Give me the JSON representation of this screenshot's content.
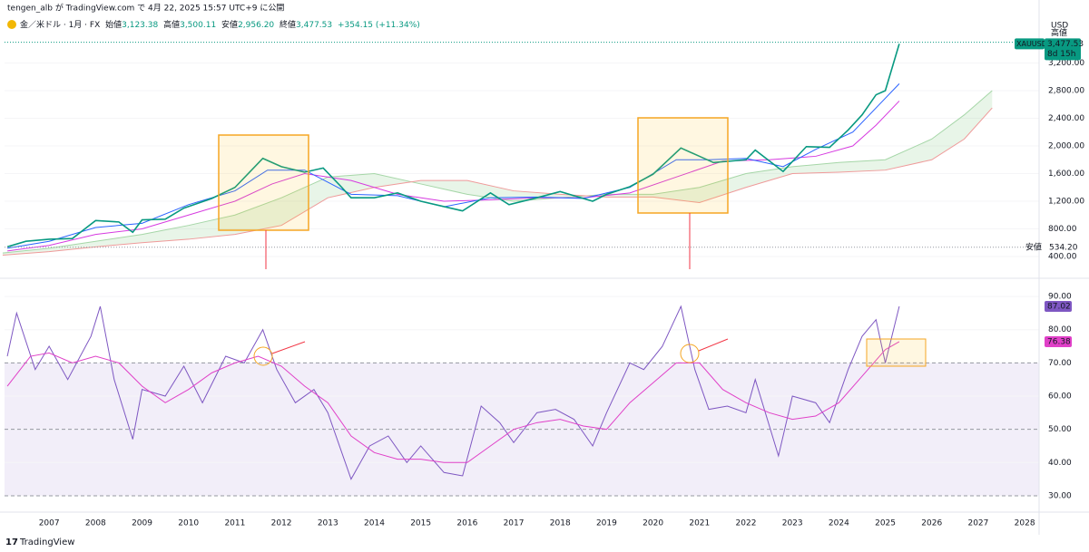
{
  "header": {
    "publisher": "tengen_alb が TradingView.com で 4月 22, 2025 15:57 UTC+9 に公開",
    "symbol": "金／米ドル · 1月 · FX",
    "ohlc": [
      [
        "始値",
        "3,123.38"
      ],
      [
        "高値",
        "3,500.11"
      ],
      [
        "安値",
        "2,956.20"
      ],
      [
        "終値",
        "3,477.53"
      ]
    ],
    "change": "+354.15 (+11.34%)",
    "currency": "USD",
    "brand": "TradingView"
  },
  "chart_data": [
    {
      "type": "line",
      "pane": "price",
      "xlim": [
        2006.04,
        2028.31
      ],
      "ylim": [
        177,
        3587
      ],
      "yticks": [
        {
          "value": 400,
          "label": "400.00"
        },
        {
          "value": 800,
          "label": "800.00"
        },
        {
          "value": 1200,
          "label": "1,200.00"
        },
        {
          "value": 1600,
          "label": "1,600.00"
        },
        {
          "value": 2000,
          "label": "2,000.00"
        },
        {
          "value": 2400,
          "label": "2,400.00"
        },
        {
          "value": 2800,
          "label": "2,800.00"
        },
        {
          "value": 3200,
          "label": "3,200.00"
        }
      ],
      "high_line": {
        "label": "高値",
        "value": 3500.11
      },
      "low_line": {
        "label": "安値",
        "value": 534.2,
        "value_label": "534.20"
      },
      "last": {
        "symbol": "XAUUSD",
        "value": 3477.53,
        "value_label": "3,477.53",
        "countdown": "8d 15h",
        "color": "#089981"
      },
      "series": [
        {
          "role": "cloud-a",
          "color": "#a5d6a7",
          "x": [
            2006,
            2007,
            2008,
            2009,
            2010,
            2011,
            2012,
            2013,
            2014,
            2015,
            2016,
            2017,
            2018,
            2019,
            2020,
            2021,
            2022,
            2023,
            2024,
            2025,
            2026,
            2026.7,
            2027.3
          ],
          "values": [
            450,
            520,
            620,
            720,
            850,
            1000,
            1250,
            1550,
            1600,
            1450,
            1300,
            1200,
            1250,
            1300,
            1300,
            1400,
            1600,
            1700,
            1760,
            1800,
            2100,
            2450,
            2800
          ]
        },
        {
          "role": "cloud-b",
          "color": "#ef9a9a",
          "x": [
            2006,
            2007,
            2008,
            2009,
            2010,
            2011,
            2012,
            2013,
            2014,
            2015,
            2016,
            2017,
            2018,
            2019,
            2020,
            2021,
            2022,
            2023,
            2024,
            2025,
            2026,
            2026.7,
            2027.3
          ],
          "values": [
            420,
            470,
            540,
            600,
            650,
            720,
            850,
            1250,
            1400,
            1500,
            1500,
            1350,
            1300,
            1260,
            1260,
            1180,
            1400,
            1600,
            1620,
            1650,
            1800,
            2100,
            2550
          ]
        },
        {
          "role": "base",
          "color": "#d63ae0",
          "x": [
            2006.1,
            2007,
            2008,
            2009,
            2010,
            2011,
            2011.8,
            2012.5,
            2013.5,
            2014.5,
            2015.5,
            2016.5,
            2017.5,
            2018.5,
            2019.5,
            2020.5,
            2021.5,
            2022.5,
            2023.5,
            2024.3,
            2024.8,
            2025.3
          ],
          "values": [
            480,
            560,
            720,
            800,
            1000,
            1200,
            1450,
            1600,
            1500,
            1300,
            1200,
            1220,
            1250,
            1250,
            1320,
            1550,
            1780,
            1800,
            1850,
            2000,
            2300,
            2650
          ]
        },
        {
          "role": "conversion",
          "color": "#2962ff",
          "x": [
            2006.1,
            2007,
            2008,
            2009,
            2010,
            2011,
            2011.7,
            2012.5,
            2013.5,
            2014.5,
            2015.5,
            2016.5,
            2017.5,
            2018.5,
            2019.5,
            2020.5,
            2021.2,
            2022,
            2022.8,
            2023.5,
            2024.3,
            2024.8,
            2025.3
          ],
          "values": [
            520,
            620,
            820,
            880,
            1150,
            1350,
            1650,
            1650,
            1300,
            1280,
            1120,
            1250,
            1260,
            1240,
            1400,
            1800,
            1800,
            1820,
            1700,
            1950,
            2200,
            2550,
            2900
          ]
        },
        {
          "role": "price",
          "color": "#089981",
          "x": [
            2006.1,
            2006.5,
            2007,
            2007.5,
            2008,
            2008.5,
            2008.8,
            2009,
            2009.5,
            2009.9,
            2010.5,
            2011,
            2011.6,
            2012,
            2012.5,
            2012.9,
            2013.3,
            2013.5,
            2014,
            2014.5,
            2015,
            2015.9,
            2016.5,
            2016.9,
            2017.5,
            2018,
            2018.7,
            2019,
            2019.5,
            2020,
            2020.6,
            2021,
            2021.3,
            2022,
            2022.2,
            2022.8,
            2023.3,
            2023.8,
            2024.2,
            2024.5,
            2024.8,
            2025,
            2025.3
          ],
          "values": [
            540,
            620,
            650,
            660,
            920,
            900,
            750,
            930,
            940,
            1100,
            1240,
            1400,
            1820,
            1700,
            1620,
            1680,
            1400,
            1250,
            1250,
            1320,
            1200,
            1060,
            1320,
            1150,
            1250,
            1340,
            1200,
            1300,
            1410,
            1590,
            1970,
            1850,
            1760,
            1800,
            1940,
            1630,
            1990,
            1980,
            2230,
            2450,
            2740,
            2800,
            3477.53
          ]
        }
      ]
    },
    {
      "type": "line",
      "pane": "rsi",
      "xlim": [
        2006.04,
        2028.31
      ],
      "ylim": [
        27.8,
        93.3
      ],
      "xticks": [
        2007,
        2008,
        2009,
        2010,
        2011,
        2012,
        2013,
        2014,
        2015,
        2016,
        2017,
        2018,
        2019,
        2020,
        2021,
        2022,
        2023,
        2024,
        2025,
        2026,
        2027,
        2028
      ],
      "yticks": [
        {
          "value": 30,
          "label": "30.00"
        },
        {
          "value": 40,
          "label": "40.00"
        },
        {
          "value": 50,
          "label": "50.00"
        },
        {
          "value": 60,
          "label": "60.00"
        },
        {
          "value": 70,
          "label": "70.00"
        },
        {
          "value": 80,
          "label": "80.00"
        },
        {
          "value": 90,
          "label": "90.00"
        }
      ],
      "levels": [
        70,
        50,
        30
      ],
      "band": [
        30,
        70
      ],
      "series": [
        {
          "role": "rsi",
          "color": "#7e57c2",
          "last_label": "87.02",
          "x": [
            2006.1,
            2006.3,
            2006.7,
            2007,
            2007.4,
            2007.9,
            2008.1,
            2008.4,
            2008.8,
            2009,
            2009.5,
            2009.9,
            2010.3,
            2010.8,
            2011.2,
            2011.6,
            2011.9,
            2012.3,
            2012.7,
            2013,
            2013.5,
            2013.9,
            2014.3,
            2014.7,
            2015,
            2015.5,
            2015.9,
            2016.3,
            2016.7,
            2017,
            2017.5,
            2017.9,
            2018.3,
            2018.7,
            2019,
            2019.5,
            2019.8,
            2020.2,
            2020.6,
            2020.9,
            2021.2,
            2021.6,
            2022,
            2022.2,
            2022.7,
            2023,
            2023.5,
            2023.8,
            2024.2,
            2024.5,
            2024.8,
            2025,
            2025.3
          ],
          "values": [
            72,
            85,
            68,
            75,
            65,
            78,
            87,
            65,
            47,
            62,
            60,
            69,
            58,
            72,
            70,
            80,
            68,
            58,
            62,
            55,
            35,
            45,
            48,
            40,
            45,
            37,
            36,
            57,
            52,
            46,
            55,
            56,
            53,
            45,
            55,
            70,
            68,
            75,
            87,
            68,
            56,
            57,
            55,
            65,
            42,
            60,
            58,
            52,
            68,
            78,
            83,
            70,
            87.02
          ]
        },
        {
          "role": "rsi-ma",
          "color": "#e040c8",
          "last_label": "76.38",
          "x": [
            2006.1,
            2006.6,
            2007,
            2007.5,
            2008,
            2008.5,
            2009,
            2009.5,
            2010,
            2010.5,
            2011,
            2011.5,
            2012,
            2012.5,
            2013,
            2013.5,
            2014,
            2014.5,
            2015,
            2015.5,
            2016,
            2016.5,
            2017,
            2017.5,
            2018,
            2018.5,
            2019,
            2019.5,
            2020,
            2020.5,
            2021,
            2021.5,
            2022,
            2022.5,
            2023,
            2023.5,
            2024,
            2024.5,
            2025,
            2025.3
          ],
          "values": [
            63,
            72,
            73,
            70,
            72,
            70,
            63,
            58,
            62,
            67,
            70,
            72,
            69,
            63,
            58,
            48,
            43,
            41,
            41,
            40,
            40,
            45,
            50,
            52,
            53,
            51,
            50,
            58,
            64,
            70,
            70,
            62,
            58,
            55,
            53,
            54,
            58,
            66,
            74,
            76.38
          ]
        }
      ]
    }
  ]
}
